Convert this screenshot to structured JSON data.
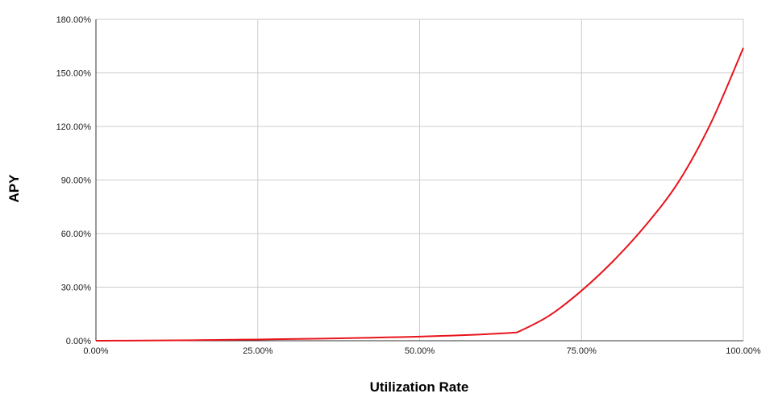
{
  "chart_data": {
    "type": "line",
    "xlabel": "Utilization Rate",
    "ylabel": "APY",
    "xlim": [
      0,
      100
    ],
    "ylim": [
      0,
      180
    ],
    "x_ticks": [
      "0.00%",
      "25.00%",
      "50.00%",
      "75.00%",
      "100.00%"
    ],
    "y_ticks": [
      "0.00%",
      "30.00%",
      "60.00%",
      "90.00%",
      "120.00%",
      "150.00%",
      "180.00%"
    ],
    "x_tick_values": [
      0,
      25,
      50,
      75,
      100
    ],
    "y_tick_values": [
      0,
      30,
      60,
      90,
      120,
      150,
      180
    ],
    "grid": true,
    "series": [
      {
        "color": "#e8141b",
        "x": [
          0,
          5,
          10,
          15,
          20,
          25,
          30,
          35,
          40,
          45,
          50,
          55,
          60,
          65,
          70,
          75,
          80,
          85,
          90,
          95,
          100
        ],
        "y": [
          0,
          0.05,
          0.15,
          0.3,
          0.5,
          0.7,
          0.95,
          1.2,
          1.5,
          1.9,
          2.3,
          2.9,
          3.6,
          4.6,
          14,
          28,
          45,
          65,
          89,
          122,
          164
        ]
      }
    ]
  }
}
